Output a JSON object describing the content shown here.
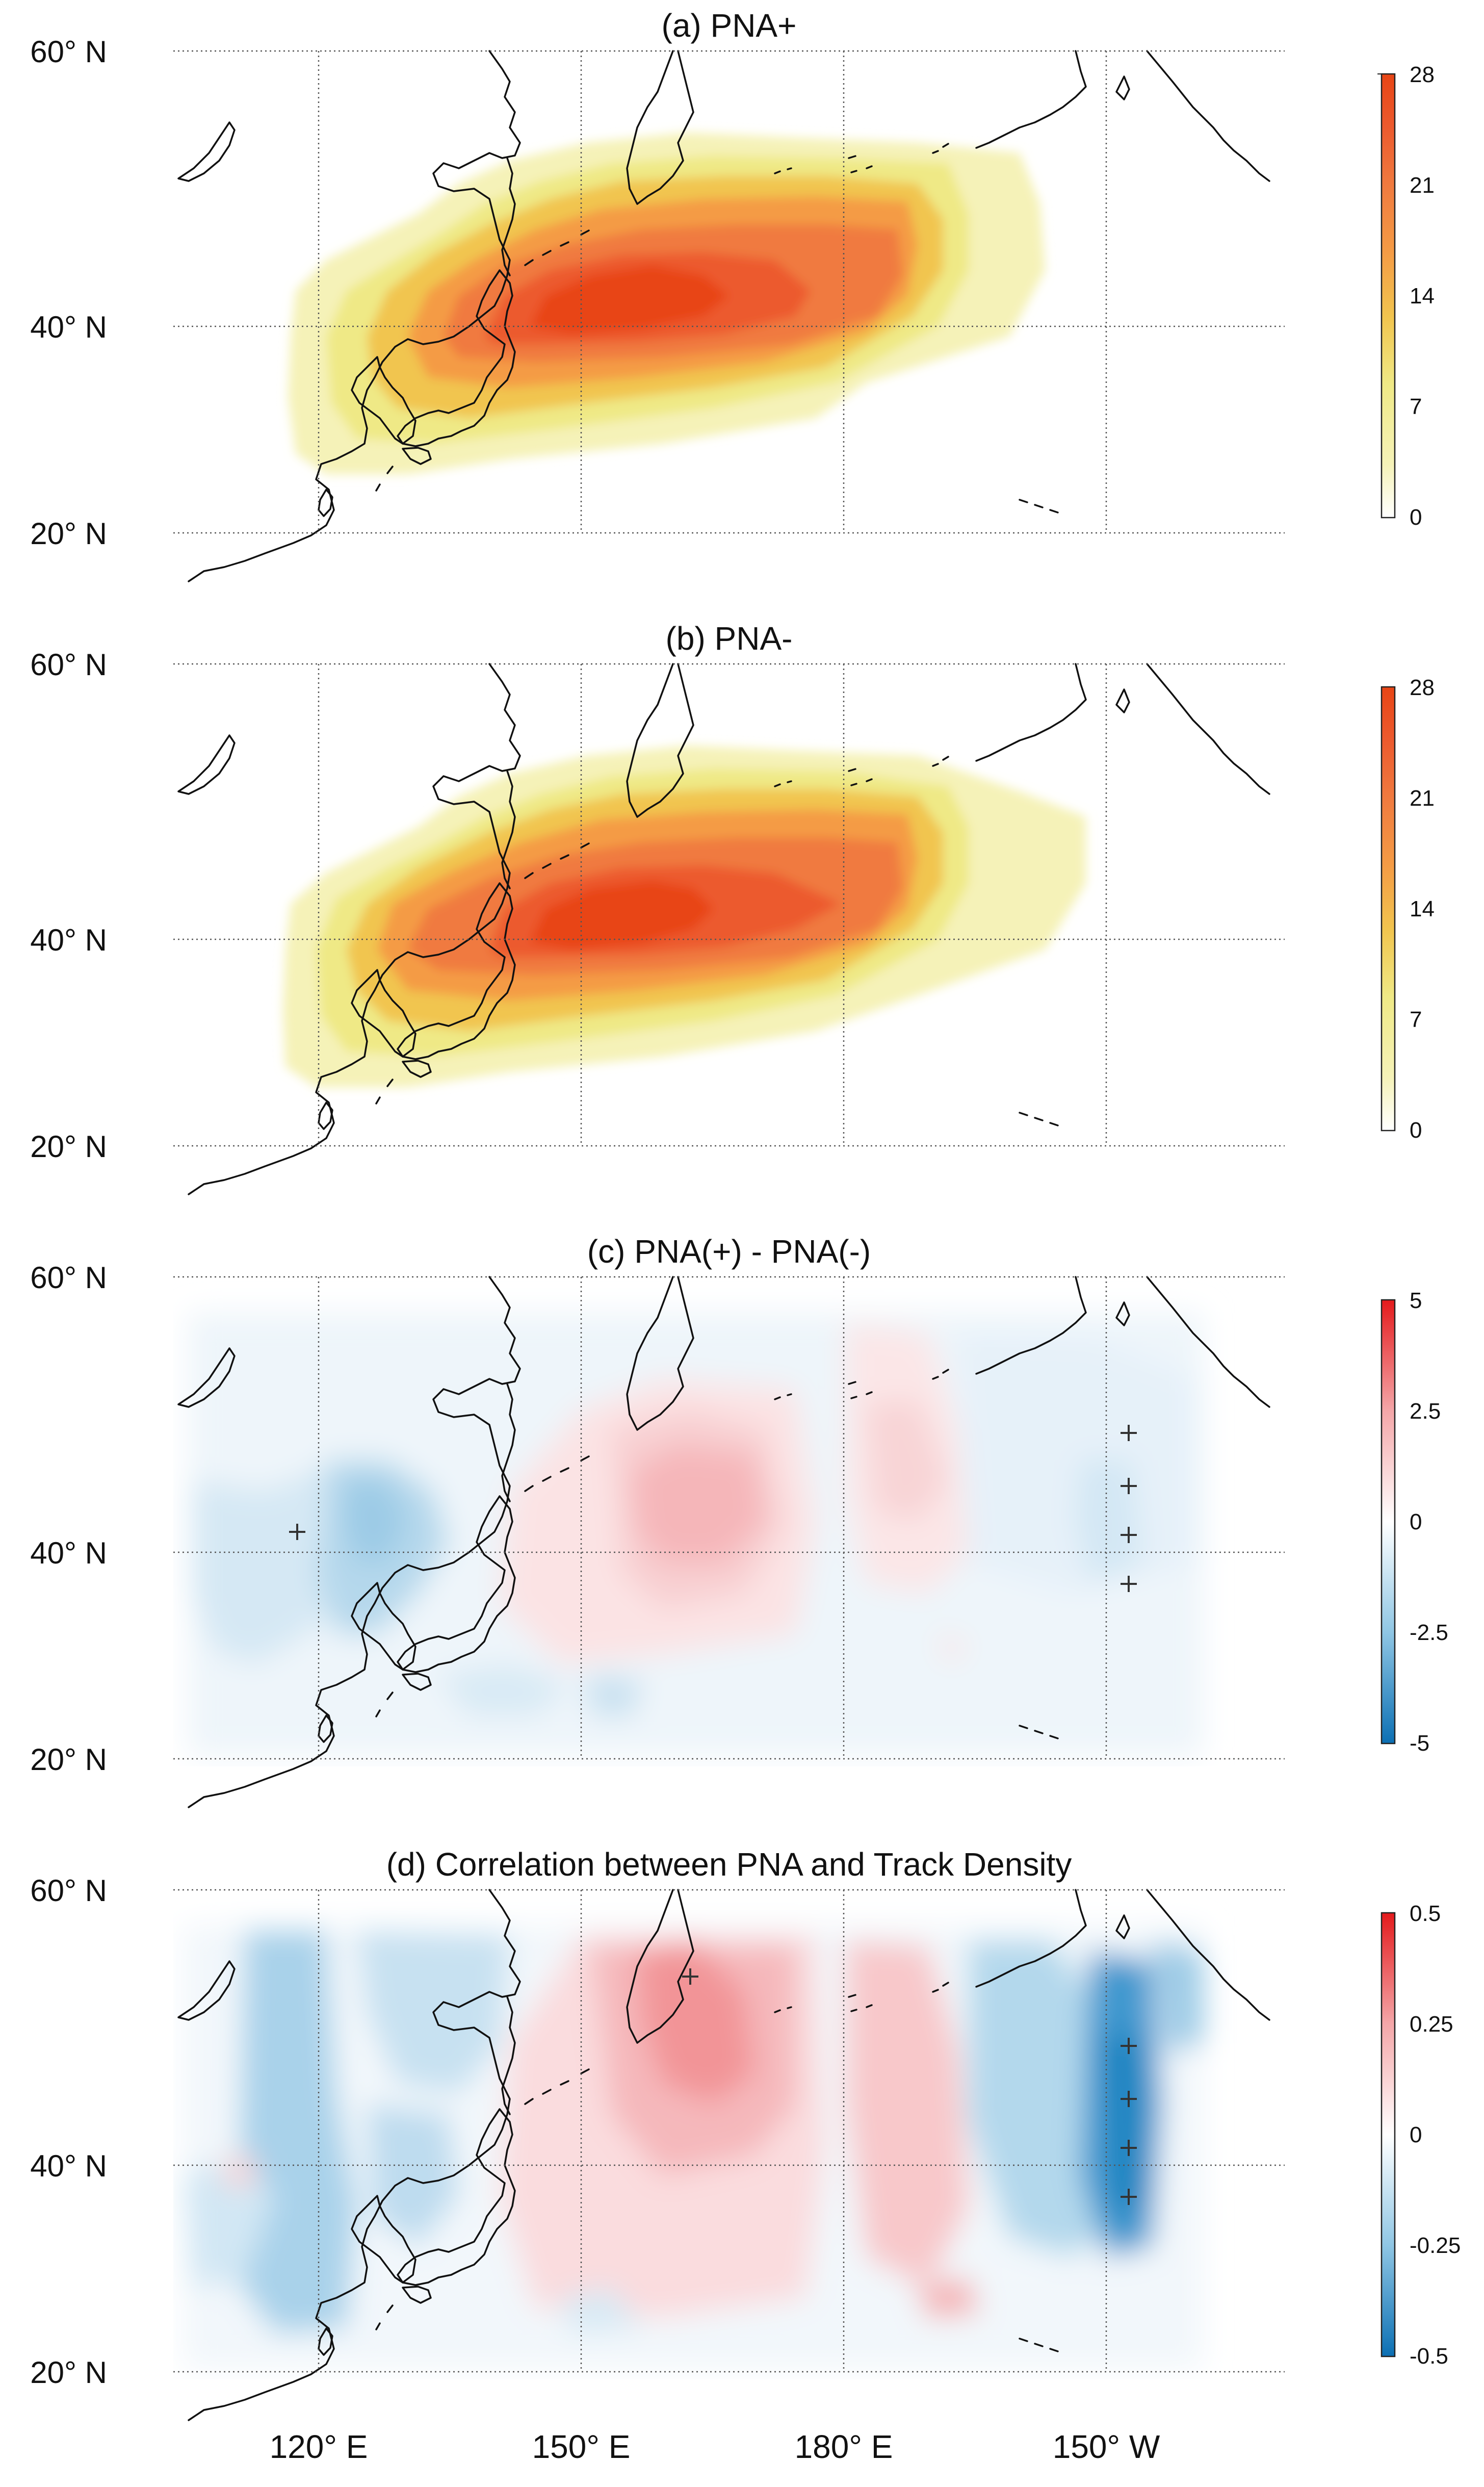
{
  "figure": {
    "panels": [
      {
        "id": "a",
        "title": "(a) PNA+",
        "colorbar": {
          "ticks": [
            "28",
            "21",
            "14",
            "7",
            "0"
          ],
          "colors": [
            "#ffffff",
            "#f5f2b8",
            "#efe986",
            "#f1c54f",
            "#f49b45",
            "#f07a3f",
            "#ec5a2e",
            "#e84515"
          ]
        }
      },
      {
        "id": "b",
        "title": "(b) PNA-",
        "colorbar": {
          "ticks": [
            "28",
            "21",
            "14",
            "7",
            "0"
          ],
          "colors": [
            "#ffffff",
            "#f5f2b8",
            "#efe986",
            "#f1c54f",
            "#f49b45",
            "#f07a3f",
            "#ec5a2e",
            "#e84515"
          ]
        }
      },
      {
        "id": "c",
        "title": "(c) PNA(+) - PNA(-)",
        "colorbar": {
          "ticks": [
            "5",
            "2.5",
            "0",
            "-2.5",
            "-5"
          ],
          "colors": [
            "#e41a1c",
            "#f4a6a8",
            "#ffffff",
            "#8fc6e4",
            "#0b6fb3"
          ]
        }
      },
      {
        "id": "d",
        "title": "(d) Correlation between PNA and Track Density",
        "colorbar": {
          "ticks": [
            "0.5",
            "0.25",
            "0",
            "-0.25",
            "-0.5"
          ],
          "colors": [
            "#e41a1c",
            "#f4a6a8",
            "#ffffff",
            "#8fc6e4",
            "#0b6fb3"
          ]
        }
      }
    ],
    "lat_labels": [
      "60° N",
      "40° N",
      "20° N"
    ],
    "lon_labels": [
      "120° E",
      "150° E",
      "180° E",
      "150° W"
    ]
  }
}
